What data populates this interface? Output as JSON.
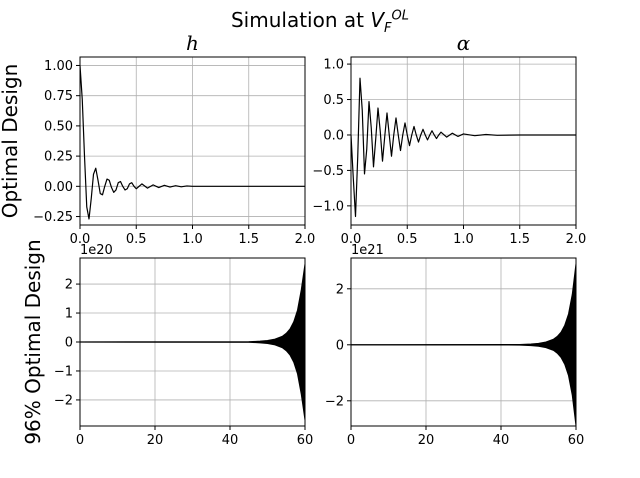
{
  "figure": {
    "title": "Simulation at",
    "title_symbol": "V",
    "title_sub": "F",
    "title_sup": "OL",
    "row_labels": [
      "Optimal Design",
      "96% Optimal Design"
    ],
    "colors": {
      "line": "#000000",
      "grid": "#b0b0b0",
      "axes": "#000000"
    }
  },
  "chart_data": [
    {
      "type": "line",
      "title": "h",
      "grid": true,
      "xlim": [
        0,
        2.0
      ],
      "ylim": [
        -0.32,
        1.07
      ],
      "xticks": [
        0,
        0.5,
        1.0,
        1.5,
        2.0
      ],
      "xtick_labels": [
        "0.0",
        "0.5",
        "1.0",
        "1.5",
        "2.0"
      ],
      "yticks": [
        1.0,
        0.75,
        0.5,
        0.25,
        0.0,
        -0.25
      ],
      "ytick_labels": [
        "1.00",
        "0.75",
        "0.50",
        "0.25",
        "0.00",
        "−0.25"
      ],
      "offset_label": "",
      "series": [
        {
          "x": [
            0,
            0.02,
            0.04,
            0.06,
            0.08,
            0.1,
            0.12,
            0.14,
            0.16,
            0.18,
            0.2,
            0.22,
            0.24,
            0.26,
            0.28,
            0.3,
            0.32,
            0.34,
            0.36,
            0.38,
            0.4,
            0.42,
            0.44,
            0.46,
            0.48,
            0.5,
            0.55,
            0.6,
            0.65,
            0.7,
            0.75,
            0.8,
            0.85,
            0.9,
            0.95,
            1.0,
            1.2,
            1.5,
            2.0
          ],
          "y": [
            1.0,
            0.72,
            0.25,
            -0.17,
            -0.27,
            -0.1,
            0.1,
            0.15,
            0.05,
            -0.06,
            -0.07,
            0.0,
            0.06,
            0.05,
            -0.01,
            -0.05,
            -0.03,
            0.03,
            0.04,
            0.0,
            -0.03,
            -0.02,
            0.02,
            0.03,
            0.0,
            -0.02,
            0.02,
            -0.015,
            0.012,
            -0.01,
            0.008,
            -0.006,
            0.005,
            -0.004,
            0.003,
            0.0,
            0.0,
            0.0,
            0.0
          ]
        }
      ]
    },
    {
      "type": "line",
      "title": "α",
      "grid": true,
      "xlim": [
        0,
        2.0
      ],
      "ylim": [
        -1.27,
        1.1
      ],
      "xticks": [
        0,
        0.5,
        1.0,
        1.5,
        2.0
      ],
      "xtick_labels": [
        "0.0",
        "0.5",
        "1.0",
        "1.5",
        "2.0"
      ],
      "yticks": [
        1.0,
        0.5,
        0.0,
        -0.5,
        -1.0
      ],
      "ytick_labels": [
        "1.0",
        "0.5",
        "0.0",
        "−0.5",
        "−1.0"
      ],
      "offset_label": "",
      "series": [
        {
          "x": [
            0,
            0.02,
            0.04,
            0.06,
            0.08,
            0.1,
            0.12,
            0.14,
            0.16,
            0.18,
            0.2,
            0.22,
            0.24,
            0.26,
            0.28,
            0.3,
            0.32,
            0.34,
            0.36,
            0.38,
            0.4,
            0.42,
            0.44,
            0.46,
            0.48,
            0.5,
            0.52,
            0.54,
            0.56,
            0.58,
            0.6,
            0.62,
            0.64,
            0.66,
            0.68,
            0.7,
            0.72,
            0.74,
            0.76,
            0.78,
            0.8,
            0.85,
            0.9,
            0.95,
            1.0,
            1.1,
            1.2,
            1.3,
            1.5,
            2.0
          ],
          "y": [
            0.0,
            -0.6,
            -1.15,
            -0.3,
            0.8,
            0.35,
            -0.55,
            -0.2,
            0.47,
            0.1,
            -0.45,
            -0.05,
            0.38,
            0.05,
            -0.37,
            -0.02,
            0.31,
            0.0,
            -0.3,
            0.0,
            0.24,
            0.0,
            -0.22,
            0.0,
            0.17,
            0.0,
            -0.15,
            0.0,
            0.12,
            0.0,
            -0.1,
            0.0,
            0.08,
            0.0,
            -0.07,
            0.0,
            0.06,
            0.0,
            -0.05,
            0.0,
            0.04,
            -0.03,
            0.025,
            -0.02,
            0.015,
            -0.01,
            0.007,
            -0.005,
            0.0,
            0.0
          ]
        }
      ]
    },
    {
      "type": "line",
      "title": "",
      "grid": true,
      "xlim": [
        0,
        60
      ],
      "ylim": [
        -2.9,
        2.9
      ],
      "xticks": [
        0,
        20,
        40,
        60
      ],
      "xtick_labels": [
        "0",
        "20",
        "40",
        "60"
      ],
      "yticks": [
        2,
        1,
        0,
        -1,
        -2
      ],
      "ytick_labels": [
        "2",
        "1",
        "0",
        "−1",
        "−2"
      ],
      "offset_label": "1e20",
      "series": [
        {
          "kind": "envelope",
          "x": [
            0,
            45,
            48,
            50,
            52,
            54,
            55,
            56,
            57,
            58,
            59,
            60
          ],
          "y": [
            0,
            0.01,
            0.03,
            0.05,
            0.1,
            0.2,
            0.3,
            0.45,
            0.7,
            1.1,
            1.8,
            2.7
          ]
        }
      ]
    },
    {
      "type": "line",
      "title": "",
      "grid": true,
      "xlim": [
        0,
        60
      ],
      "ylim": [
        -2.9,
        3.1
      ],
      "xticks": [
        0,
        20,
        40,
        60
      ],
      "xtick_labels": [
        "0",
        "20",
        "40",
        "60"
      ],
      "yticks": [
        2,
        0,
        -2
      ],
      "ytick_labels": [
        "2",
        "0",
        "−2"
      ],
      "offset_label": "1e21",
      "series": [
        {
          "kind": "envelope",
          "x": [
            0,
            45,
            48,
            50,
            52,
            54,
            55,
            56,
            57,
            58,
            59,
            60
          ],
          "y": [
            0,
            0.01,
            0.03,
            0.05,
            0.1,
            0.2,
            0.3,
            0.45,
            0.7,
            1.1,
            1.8,
            2.9
          ]
        }
      ]
    }
  ]
}
